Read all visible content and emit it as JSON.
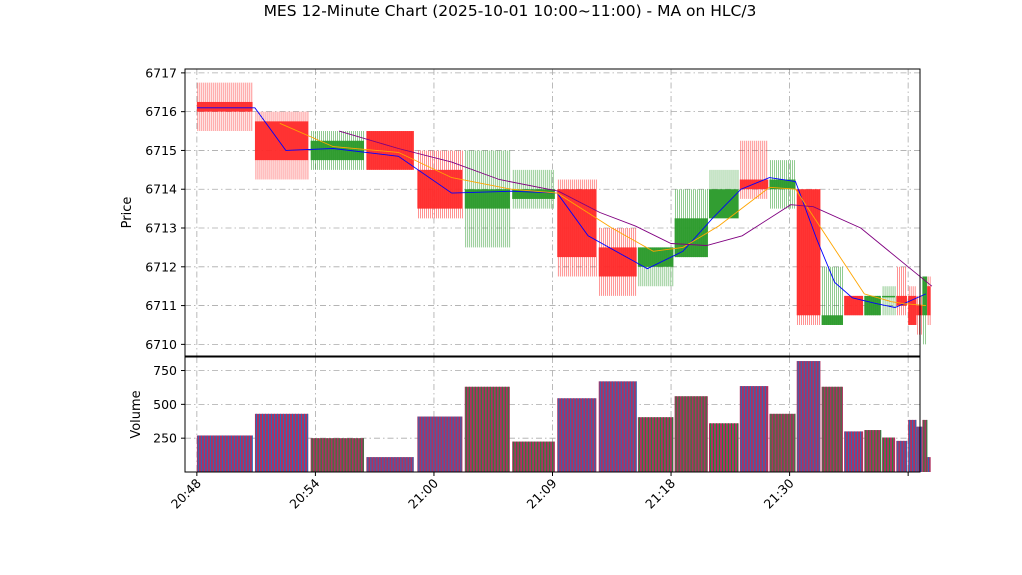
{
  "chart_data": {
    "title": "MES 12-Minute Chart (2025-10-01 10:00~11:00) - MA on HLC/3",
    "type": "candlestick",
    "colors": {
      "up": "#2a9a2a",
      "down": "#ff2a2a",
      "ma_fast": "#0000ff",
      "ma_mid": "#ffa500",
      "ma_slow": "#800080",
      "grid": "#aaaaaa"
    },
    "price_panel": {
      "ylabel": "Price",
      "ylim": [
        6709.7,
        6717.1
      ],
      "yticks": [
        6710,
        6711,
        6712,
        6713,
        6714,
        6715,
        6716,
        6717
      ],
      "grid": true
    },
    "volume_panel": {
      "ylabel": "Volume",
      "ylim": [
        0,
        850
      ],
      "yticks": [
        250,
        500,
        750
      ],
      "grid": true
    },
    "x_axis": {
      "xlim": [
        -1,
        61
      ],
      "ticks": [
        {
          "pos": 0,
          "label": "20:48"
        },
        {
          "pos": 10,
          "label": "20:54"
        },
        {
          "pos": 20,
          "label": "21:00"
        },
        {
          "pos": 30,
          "label": "21:09"
        },
        {
          "pos": 40,
          "label": "21:18"
        },
        {
          "pos": 50,
          "label": "21:30"
        },
        {
          "pos": 60,
          "label": ""
        }
      ]
    },
    "candles": [
      {
        "x": 0,
        "w": 4.7,
        "o": 6716.25,
        "h": 6716.75,
        "l": 6715.5,
        "c": 6716.0,
        "v": 270
      },
      {
        "x": 4.9,
        "w": 4.5,
        "o": 6715.75,
        "h": 6716.0,
        "l": 6714.25,
        "c": 6714.75,
        "v": 430
      },
      {
        "x": 9.6,
        "w": 4.5,
        "o": 6714.75,
        "h": 6715.5,
        "l": 6714.5,
        "c": 6715.25,
        "v": 250
      },
      {
        "x": 14.3,
        "w": 4.0,
        "o": 6715.5,
        "h": 6715.5,
        "l": 6714.5,
        "c": 6714.5,
        "v": 110
      },
      {
        "x": 18.6,
        "w": 3.8,
        "o": 6714.5,
        "h": 6715.0,
        "l": 6713.25,
        "c": 6713.5,
        "v": 410
      },
      {
        "x": 22.6,
        "w": 3.8,
        "o": 6713.5,
        "h": 6715.0,
        "l": 6712.5,
        "c": 6714.0,
        "v": 630
      },
      {
        "x": 26.6,
        "w": 3.6,
        "o": 6713.75,
        "h": 6714.5,
        "l": 6713.5,
        "c": 6714.0,
        "v": 225
      },
      {
        "x": 30.4,
        "w": 3.3,
        "o": 6714.0,
        "h": 6714.25,
        "l": 6711.75,
        "c": 6712.25,
        "v": 545
      },
      {
        "x": 33.9,
        "w": 3.2,
        "o": 6712.5,
        "h": 6713.0,
        "l": 6711.25,
        "c": 6711.75,
        "v": 670
      },
      {
        "x": 37.2,
        "w": 3.0,
        "o": 6712.0,
        "h": 6712.5,
        "l": 6711.5,
        "c": 6712.5,
        "v": 405
      },
      {
        "x": 40.3,
        "w": 2.8,
        "o": 6712.25,
        "h": 6714.0,
        "l": 6712.25,
        "c": 6713.25,
        "v": 560
      },
      {
        "x": 43.2,
        "w": 2.5,
        "o": 6713.25,
        "h": 6714.5,
        "l": 6713.25,
        "c": 6714.0,
        "v": 360
      },
      {
        "x": 45.8,
        "w": 2.4,
        "o": 6714.25,
        "h": 6715.25,
        "l": 6713.75,
        "c": 6714.0,
        "v": 635
      },
      {
        "x": 48.3,
        "w": 2.2,
        "o": 6714.0,
        "h": 6714.75,
        "l": 6713.5,
        "c": 6714.25,
        "v": 430
      },
      {
        "x": 50.6,
        "w": 2.0,
        "o": 6714.0,
        "h": 6714.0,
        "l": 6710.5,
        "c": 6710.75,
        "v": 820
      },
      {
        "x": 52.7,
        "w": 1.8,
        "o": 6710.5,
        "h": 6712.0,
        "l": 6710.5,
        "c": 6710.75,
        "v": 630
      },
      {
        "x": 54.6,
        "w": 1.6,
        "o": 6711.25,
        "h": 6711.25,
        "l": 6710.75,
        "c": 6710.75,
        "v": 300
      },
      {
        "x": 56.3,
        "w": 1.4,
        "o": 6710.75,
        "h": 6711.25,
        "l": 6710.75,
        "c": 6711.25,
        "v": 310
      },
      {
        "x": 57.8,
        "w": 1.1,
        "o": 6711.25,
        "h": 6711.5,
        "l": 6710.75,
        "c": 6711.25,
        "v": 255
      },
      {
        "x": 59.0,
        "w": 0.9,
        "o": 6711.25,
        "h": 6712.0,
        "l": 6710.75,
        "c": 6711.0,
        "v": 230
      },
      {
        "x": 60.0,
        "w": 0.7,
        "o": 6711.25,
        "h": 6711.5,
        "l": 6710.5,
        "c": 6710.5,
        "v": 385
      },
      {
        "x": 60.7,
        "w": 0.5,
        "o": 6711.0,
        "h": 6711.25,
        "l": 6710.25,
        "c": 6710.75,
        "v": 335
      },
      {
        "x": 61.2,
        "w": 0.4,
        "o": 6710.75,
        "h": 6711.75,
        "l": 6710.0,
        "c": 6711.75,
        "v": 385
      },
      {
        "x": 61.6,
        "w": 0.3,
        "o": 6711.5,
        "h": 6711.75,
        "l": 6710.5,
        "c": 6710.75,
        "v": 110
      }
    ],
    "series": [
      {
        "color": "#0000ff",
        "points": [
          [
            0,
            6716.1
          ],
          [
            4.9,
            6716.1
          ],
          [
            7.5,
            6715.0
          ],
          [
            11.5,
            6715.05
          ],
          [
            17,
            6714.85
          ],
          [
            21.5,
            6713.9
          ],
          [
            26.5,
            6713.95
          ],
          [
            30.4,
            6713.9
          ],
          [
            33,
            6712.8
          ],
          [
            38,
            6711.95
          ],
          [
            41,
            6712.4
          ],
          [
            43.5,
            6713.25
          ],
          [
            45.9,
            6714.0
          ],
          [
            48.3,
            6714.3
          ],
          [
            50.5,
            6714.2
          ],
          [
            52.3,
            6712.7
          ],
          [
            53.8,
            6711.6
          ],
          [
            55.3,
            6711.2
          ],
          [
            57.3,
            6711.05
          ],
          [
            58.9,
            6710.95
          ],
          [
            61.5,
            6711.3
          ]
        ]
      },
      {
        "color": "#ffa500",
        "points": [
          [
            7,
            6715.7
          ],
          [
            11.5,
            6715.1
          ],
          [
            17,
            6714.95
          ],
          [
            21.5,
            6714.3
          ],
          [
            26.5,
            6714.0
          ],
          [
            30.4,
            6713.9
          ],
          [
            35,
            6713.0
          ],
          [
            38.5,
            6712.4
          ],
          [
            41,
            6712.5
          ],
          [
            44,
            6713.05
          ],
          [
            46.8,
            6713.7
          ],
          [
            48.3,
            6714.05
          ],
          [
            50.5,
            6714.0
          ],
          [
            53.5,
            6712.6
          ],
          [
            56.3,
            6711.3
          ],
          [
            58.6,
            6711.1
          ],
          [
            59.6,
            6711.05
          ],
          [
            61.5,
            6711.0
          ]
        ]
      },
      {
        "color": "#800080",
        "points": [
          [
            12,
            6715.5
          ],
          [
            17,
            6715.05
          ],
          [
            21.5,
            6714.7
          ],
          [
            25.5,
            6714.25
          ],
          [
            30.5,
            6713.95
          ],
          [
            34,
            6713.4
          ],
          [
            37,
            6713.05
          ],
          [
            40,
            6712.6
          ],
          [
            43,
            6712.55
          ],
          [
            46,
            6712.8
          ],
          [
            50.1,
            6713.6
          ],
          [
            52,
            6713.55
          ],
          [
            56,
            6713.0
          ],
          [
            60,
            6712.0
          ],
          [
            62,
            6711.5
          ]
        ]
      }
    ]
  }
}
